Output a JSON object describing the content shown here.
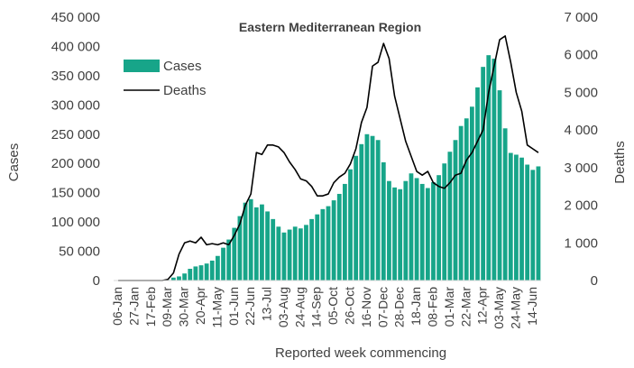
{
  "chart_data": {
    "type": "bar",
    "title": "Eastern Mediterranean Region",
    "xlabel": "Reported week commencing",
    "ylabel": "Cases",
    "y2label": "Deaths",
    "ylim": [
      0,
      450000
    ],
    "y2lim": [
      0,
      7000
    ],
    "grid": false,
    "legend_position": "top-left",
    "colors": {
      "cases": "#17a589",
      "deaths": "#000000"
    },
    "yticks": [
      "0",
      "50 000",
      "100 000",
      "150 000",
      "200 000",
      "250 000",
      "300 000",
      "350 000",
      "400 000",
      "450 000"
    ],
    "y2ticks": [
      "0",
      "1 000",
      "2 000",
      "3 000",
      "4 000",
      "5 000",
      "6 000",
      "7 000"
    ],
    "x_tick_labels": [
      "06-Jan",
      "27-Jan",
      "17-Feb",
      "09-Mar",
      "30-Mar",
      "20-Apr",
      "11-May",
      "01-Jun",
      "22-Jun",
      "13-Jul",
      "03-Aug",
      "24-Aug",
      "14-Sep",
      "05-Oct",
      "26-Oct",
      "16-Nov",
      "07-Dec",
      "28-Dec",
      "18-Jan",
      "08-Feb",
      "01-Mar",
      "22-Mar",
      "12-Apr",
      "03-May",
      "24-May",
      "14-Jun"
    ],
    "x_tick_every": 3,
    "series": [
      {
        "name": "Cases",
        "type": "bar",
        "axis": "left",
        "values": [
          0,
          0,
          0,
          0,
          0,
          0,
          0,
          0,
          0,
          1000,
          5000,
          7000,
          12000,
          20000,
          24000,
          26000,
          29000,
          34000,
          42000,
          56000,
          70000,
          90000,
          110000,
          133000,
          139000,
          125000,
          130000,
          118000,
          105000,
          92000,
          82000,
          87000,
          92000,
          89000,
          95000,
          105000,
          113000,
          122000,
          127000,
          137000,
          148000,
          165000,
          190000,
          213000,
          233000,
          250000,
          247000,
          240000,
          202000,
          170000,
          159000,
          156000,
          170000,
          183000,
          175000,
          165000,
          158000,
          168000,
          180000,
          200000,
          220000,
          240000,
          264000,
          277000,
          297000,
          330000,
          365000,
          385000,
          379000,
          325000,
          260000,
          218000,
          215000,
          210000,
          198000,
          189000,
          195000
        ]
      },
      {
        "name": "Deaths",
        "type": "line",
        "axis": "right",
        "values": [
          0,
          0,
          0,
          0,
          0,
          0,
          0,
          0,
          0,
          30,
          200,
          700,
          1000,
          1050,
          1000,
          1150,
          950,
          980,
          950,
          1000,
          950,
          1200,
          1500,
          2000,
          2300,
          3400,
          3350,
          3600,
          3600,
          3550,
          3400,
          3150,
          2950,
          2700,
          2650,
          2500,
          2250,
          2250,
          2300,
          2600,
          2750,
          2850,
          3100,
          3500,
          4200,
          4600,
          5700,
          5800,
          6300,
          5900,
          4900,
          4300,
          3700,
          3300,
          2900,
          2800,
          2900,
          2600,
          2500,
          2450,
          2600,
          2800,
          2850,
          3200,
          3400,
          3700,
          4000,
          5000,
          5700,
          6400,
          6500,
          5800,
          5000,
          4500,
          3600,
          3500,
          3400
        ]
      }
    ]
  }
}
